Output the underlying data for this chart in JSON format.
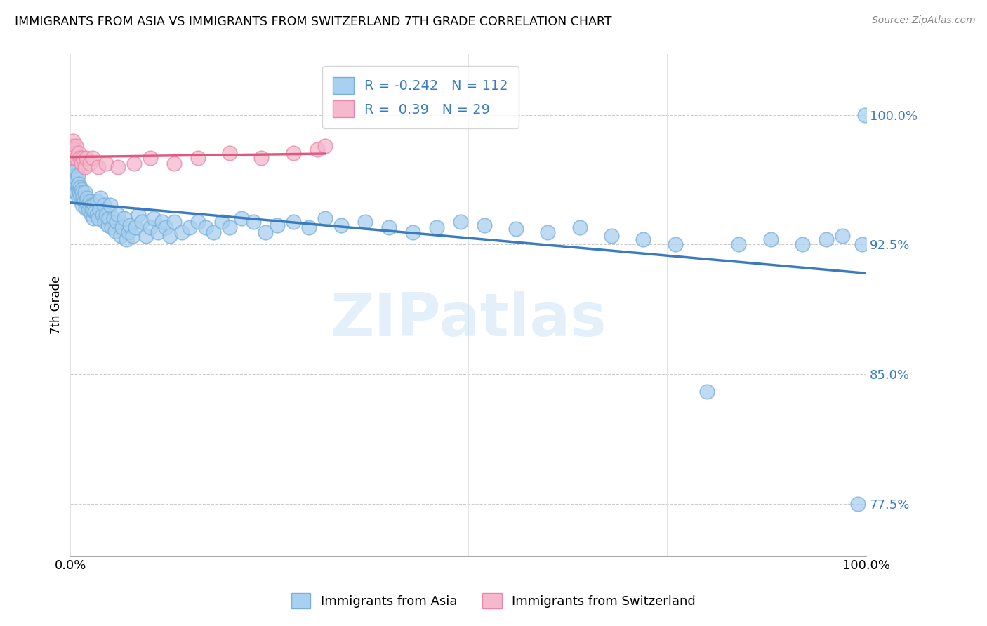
{
  "title": "IMMIGRANTS FROM ASIA VS IMMIGRANTS FROM SWITZERLAND 7TH GRADE CORRELATION CHART",
  "source": "Source: ZipAtlas.com",
  "ylabel": "7th Grade",
  "x_tick_labels": [
    "0.0%",
    "100.0%"
  ],
  "y_tick_labels": [
    "77.5%",
    "85.0%",
    "92.5%",
    "100.0%"
  ],
  "y_tick_values": [
    0.775,
    0.85,
    0.925,
    1.0
  ],
  "legend_blue_label": "Immigrants from Asia",
  "legend_pink_label": "Immigrants from Switzerland",
  "R_blue": -0.242,
  "N_blue": 112,
  "R_pink": 0.39,
  "N_pink": 29,
  "blue_color": "#a8d0f0",
  "blue_edge_color": "#7ab0d8",
  "blue_line_color": "#3a7bbf",
  "pink_color": "#f5b8cc",
  "pink_edge_color": "#e888a8",
  "pink_line_color": "#e05880",
  "background_color": "#ffffff",
  "watermark": "ZIPatlas",
  "blue_x": [
    0.001,
    0.002,
    0.002,
    0.003,
    0.003,
    0.004,
    0.004,
    0.005,
    0.005,
    0.006,
    0.006,
    0.007,
    0.007,
    0.008,
    0.008,
    0.009,
    0.009,
    0.01,
    0.01,
    0.011,
    0.012,
    0.013,
    0.014,
    0.015,
    0.015,
    0.016,
    0.017,
    0.018,
    0.019,
    0.02,
    0.021,
    0.022,
    0.023,
    0.024,
    0.025,
    0.026,
    0.027,
    0.028,
    0.029,
    0.03,
    0.031,
    0.033,
    0.034,
    0.035,
    0.037,
    0.038,
    0.04,
    0.042,
    0.043,
    0.045,
    0.047,
    0.048,
    0.05,
    0.052,
    0.054,
    0.056,
    0.058,
    0.06,
    0.063,
    0.065,
    0.068,
    0.07,
    0.073,
    0.075,
    0.078,
    0.082,
    0.085,
    0.09,
    0.095,
    0.1,
    0.105,
    0.11,
    0.115,
    0.12,
    0.125,
    0.13,
    0.14,
    0.15,
    0.16,
    0.17,
    0.18,
    0.19,
    0.2,
    0.215,
    0.23,
    0.245,
    0.26,
    0.28,
    0.3,
    0.32,
    0.34,
    0.37,
    0.4,
    0.43,
    0.46,
    0.49,
    0.52,
    0.56,
    0.6,
    0.64,
    0.68,
    0.72,
    0.76,
    0.8,
    0.84,
    0.88,
    0.92,
    0.95,
    0.97,
    0.99,
    0.995,
    0.998
  ],
  "blue_y": [
    0.965,
    0.968,
    0.972,
    0.96,
    0.975,
    0.963,
    0.97,
    0.958,
    0.968,
    0.955,
    0.965,
    0.96,
    0.968,
    0.955,
    0.963,
    0.958,
    0.965,
    0.952,
    0.96,
    0.955,
    0.958,
    0.953,
    0.957,
    0.955,
    0.948,
    0.952,
    0.95,
    0.955,
    0.946,
    0.95,
    0.952,
    0.948,
    0.945,
    0.95,
    0.947,
    0.942,
    0.948,
    0.945,
    0.94,
    0.948,
    0.944,
    0.942,
    0.95,
    0.94,
    0.945,
    0.952,
    0.942,
    0.948,
    0.938,
    0.942,
    0.936,
    0.94,
    0.948,
    0.935,
    0.94,
    0.933,
    0.938,
    0.942,
    0.93,
    0.935,
    0.94,
    0.928,
    0.932,
    0.936,
    0.93,
    0.935,
    0.942,
    0.938,
    0.93,
    0.935,
    0.94,
    0.932,
    0.938,
    0.935,
    0.93,
    0.938,
    0.932,
    0.935,
    0.938,
    0.935,
    0.932,
    0.938,
    0.935,
    0.94,
    0.938,
    0.932,
    0.936,
    0.938,
    0.935,
    0.94,
    0.936,
    0.938,
    0.935,
    0.932,
    0.935,
    0.938,
    0.936,
    0.934,
    0.932,
    0.935,
    0.93,
    0.928,
    0.925,
    0.84,
    0.925,
    0.928,
    0.925,
    0.928,
    0.93,
    0.775,
    0.925,
    1.0
  ],
  "pink_x": [
    0.001,
    0.002,
    0.002,
    0.003,
    0.004,
    0.005,
    0.006,
    0.007,
    0.008,
    0.01,
    0.012,
    0.014,
    0.016,
    0.018,
    0.02,
    0.024,
    0.028,
    0.035,
    0.045,
    0.06,
    0.08,
    0.1,
    0.13,
    0.16,
    0.2,
    0.24,
    0.28,
    0.31,
    0.32
  ],
  "pink_y": [
    0.98,
    0.982,
    0.978,
    0.985,
    0.975,
    0.98,
    0.978,
    0.982,
    0.975,
    0.978,
    0.975,
    0.972,
    0.975,
    0.97,
    0.975,
    0.972,
    0.975,
    0.97,
    0.972,
    0.97,
    0.972,
    0.975,
    0.972,
    0.975,
    0.978,
    0.975,
    0.978,
    0.98,
    0.982
  ]
}
